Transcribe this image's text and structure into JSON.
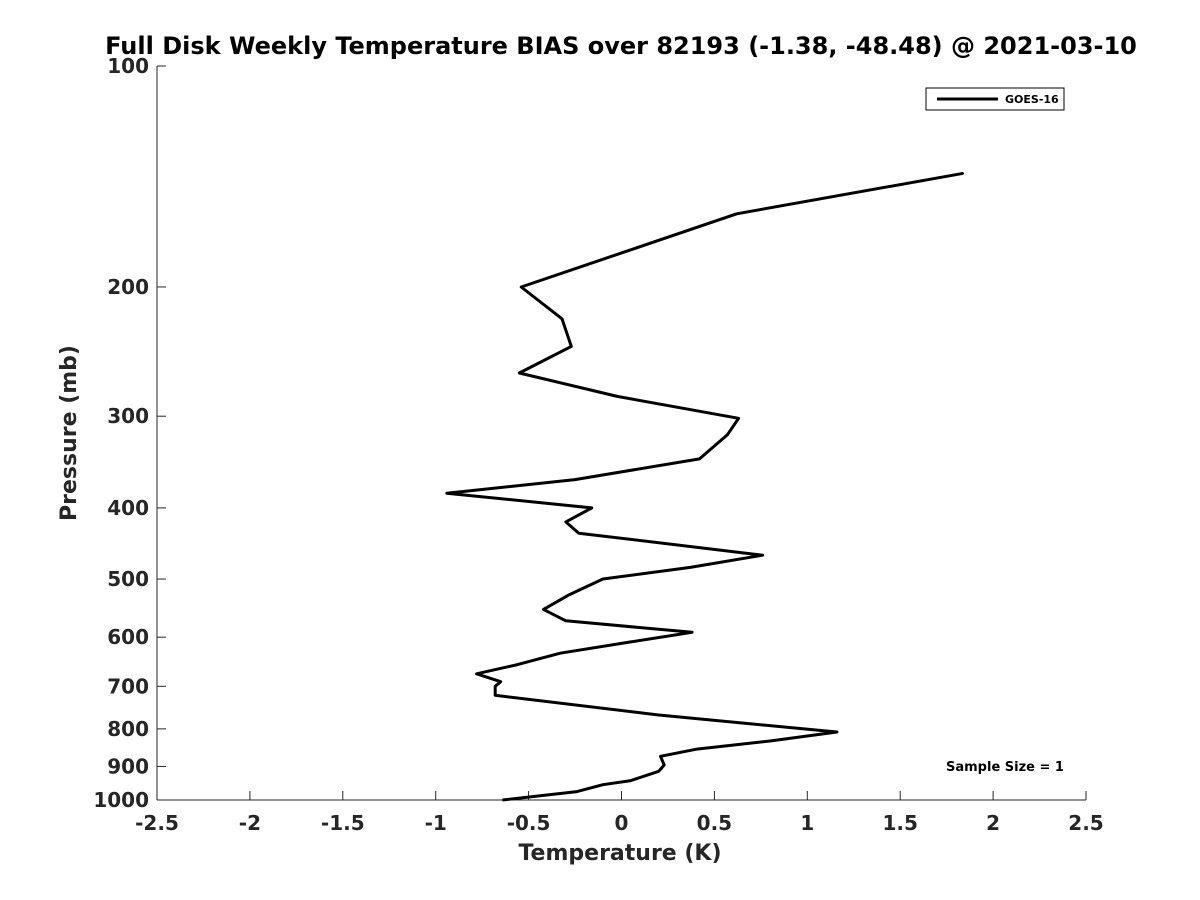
{
  "chart_data": {
    "type": "line",
    "title": "Full Disk Weekly Temperature BIAS over 82193 (-1.38, -48.48) @ 2021-03-10",
    "xlabel": "Temperature (K)",
    "ylabel": "Pressure (mb)",
    "xlim": [
      -2.5,
      2.5
    ],
    "ylim": [
      100,
      1000
    ],
    "y_scale": "log",
    "y_reversed": true,
    "grid": false,
    "x_ticks": [
      -2.5,
      -2,
      -1.5,
      -1,
      -0.5,
      0,
      0.5,
      1,
      1.5,
      2,
      2.5
    ],
    "x_tick_labels": [
      "-2.5",
      "-2",
      "-1.5",
      "-1",
      "-0.5",
      "0",
      "0.5",
      "1",
      "1.5",
      "2",
      "2.5"
    ],
    "y_ticks": [
      100,
      200,
      300,
      400,
      500,
      600,
      700,
      800,
      900,
      1000
    ],
    "y_tick_labels": [
      "100",
      "200",
      "300",
      "400",
      "500",
      "600",
      "700",
      "800",
      "900",
      "1000"
    ],
    "legend_position": "top-right",
    "series": [
      {
        "name": "GOES-16",
        "color": "#000000",
        "points": [
          {
            "x": 1.84,
            "y": 140
          },
          {
            "x": 0.62,
            "y": 159
          },
          {
            "x": 0.05,
            "y": 178
          },
          {
            "x": -0.54,
            "y": 200
          },
          {
            "x": -0.32,
            "y": 221
          },
          {
            "x": -0.27,
            "y": 241
          },
          {
            "x": -0.55,
            "y": 262
          },
          {
            "x": -0.02,
            "y": 282
          },
          {
            "x": 0.63,
            "y": 302
          },
          {
            "x": 0.57,
            "y": 318
          },
          {
            "x": 0.42,
            "y": 343
          },
          {
            "x": -0.25,
            "y": 366
          },
          {
            "x": -0.94,
            "y": 382
          },
          {
            "x": -0.16,
            "y": 400
          },
          {
            "x": -0.3,
            "y": 418
          },
          {
            "x": -0.23,
            "y": 433
          },
          {
            "x": 0.76,
            "y": 464
          },
          {
            "x": 0.37,
            "y": 482
          },
          {
            "x": -0.1,
            "y": 500
          },
          {
            "x": -0.28,
            "y": 525
          },
          {
            "x": -0.42,
            "y": 550
          },
          {
            "x": -0.3,
            "y": 570
          },
          {
            "x": 0.38,
            "y": 591
          },
          {
            "x": 0.05,
            "y": 609
          },
          {
            "x": -0.33,
            "y": 631
          },
          {
            "x": -0.56,
            "y": 654
          },
          {
            "x": -0.78,
            "y": 673
          },
          {
            "x": -0.65,
            "y": 690
          },
          {
            "x": -0.68,
            "y": 700
          },
          {
            "x": -0.68,
            "y": 720
          },
          {
            "x": 0.2,
            "y": 766
          },
          {
            "x": 1.16,
            "y": 808
          },
          {
            "x": 0.8,
            "y": 831
          },
          {
            "x": 0.4,
            "y": 853
          },
          {
            "x": 0.21,
            "y": 872
          },
          {
            "x": 0.23,
            "y": 896
          },
          {
            "x": 0.2,
            "y": 914
          },
          {
            "x": 0.05,
            "y": 941
          },
          {
            "x": -0.1,
            "y": 953
          },
          {
            "x": -0.24,
            "y": 974
          },
          {
            "x": -0.64,
            "y": 1000
          }
        ]
      }
    ],
    "annotations": [
      "Sample Size = 1"
    ]
  }
}
